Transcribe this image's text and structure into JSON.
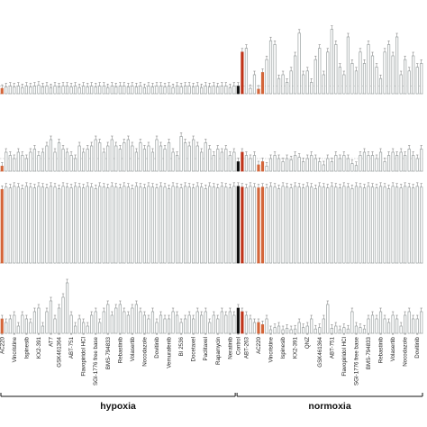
{
  "chart_data": {
    "type": "bar",
    "title": "",
    "xlabel": "",
    "panels": 4,
    "groups": [
      {
        "name": "hypoxia",
        "start": 0,
        "end": 58
      },
      {
        "name": "normoxia",
        "start": 58,
        "end": 104
      }
    ],
    "colors": {
      "compound": "#9aa1a1",
      "control_dark": "#111111",
      "control_red": "#c0351a",
      "highlight_orange": "#d4663a"
    },
    "highlight_indices": [
      0,
      58,
      59,
      63,
      64
    ],
    "tick_labels": [
      {
        "index": 0,
        "label": "AC220"
      },
      {
        "index": 3,
        "label": "Vincristine"
      },
      {
        "index": 6,
        "label": "Ispinesib"
      },
      {
        "index": 9,
        "label": "KX2-391"
      },
      {
        "index": 12,
        "label": "AT7"
      },
      {
        "index": 14,
        "label": "GSK461364"
      },
      {
        "index": 17,
        "label": "ABT-751"
      },
      {
        "index": 20,
        "label": "Flavopiridol HCl"
      },
      {
        "index": 23,
        "label": "SGI-1776 free base"
      },
      {
        "index": 26,
        "label": "BMS-794833"
      },
      {
        "index": 29,
        "label": "Rebastinib"
      },
      {
        "index": 32,
        "label": "Volasertib"
      },
      {
        "index": 35,
        "label": "Nocodazole"
      },
      {
        "index": 38,
        "label": "Dovitinib"
      },
      {
        "index": 41,
        "label": "Vemurafenib"
      },
      {
        "index": 44,
        "label": "BI 2536"
      },
      {
        "index": 47,
        "label": "Docetaxel"
      },
      {
        "index": 50,
        "label": "Paclitaxel"
      },
      {
        "index": 53,
        "label": "Rapamycin"
      },
      {
        "index": 56,
        "label": "Neratinib"
      },
      {
        "index": 58,
        "label": "Control"
      },
      {
        "index": 60,
        "label": "ABT-263"
      },
      {
        "index": 63,
        "label": "AC220"
      },
      {
        "index": 66,
        "label": "Vincristine"
      },
      {
        "index": 69,
        "label": "Ispinesib"
      },
      {
        "index": 72,
        "label": "KX2-391"
      },
      {
        "index": 75,
        "label": "QNZ"
      },
      {
        "index": 78,
        "label": "GSK461364"
      },
      {
        "index": 81,
        "label": "ABT-751"
      },
      {
        "index": 84,
        "label": "Flavopiridol HCl"
      },
      {
        "index": 87,
        "label": "SGI-1776 free base"
      },
      {
        "index": 90,
        "label": "BMS-794833"
      },
      {
        "index": 93,
        "label": "Rebastinib"
      },
      {
        "index": 96,
        "label": "Volasertib"
      },
      {
        "index": 99,
        "label": "Nocodazole"
      },
      {
        "index": 102,
        "label": "Dovitinib"
      }
    ],
    "series": [
      {
        "panel": 1,
        "ylim": [
          0,
          10
        ],
        "reference": 1,
        "values": [
          0.7,
          0.9,
          1,
          0.9,
          1,
          0.8,
          1,
          0.9,
          1,
          1.1,
          0.9,
          1,
          0.8,
          1,
          0.9,
          1,
          1,
          0.9,
          1,
          0.8,
          1,
          0.9,
          1,
          0.9,
          1,
          1,
          0.8,
          1,
          0.9,
          1,
          1,
          0.9,
          1,
          0.9,
          1,
          0.8,
          1,
          0.9,
          1,
          1,
          0.9,
          1,
          0.8,
          1,
          0.9,
          1,
          1,
          0.9,
          1,
          0.8,
          1,
          0.9,
          1,
          0.9,
          1,
          1,
          0.8,
          1,
          1,
          5.5,
          6,
          0.7,
          2.5,
          0.6,
          2.8,
          4.5,
          7,
          6.5,
          2,
          2.5,
          1.5,
          3,
          5,
          8,
          2.5,
          3,
          1.5,
          4.5,
          6,
          2.5,
          5.5,
          8.5,
          6.5,
          3.5,
          2.5,
          7.5,
          4,
          3,
          5.5,
          4,
          6.5,
          5,
          3.5,
          2,
          5.5,
          6.5,
          5,
          7.5,
          2.5,
          4.5,
          3,
          5,
          3.5,
          4
        ]
      },
      {
        "panel": 2,
        "ylim": [
          0,
          10
        ],
        "reference": 2,
        "values": [
          0.8,
          3,
          2.5,
          2,
          3,
          2.5,
          2,
          3,
          3.5,
          2.5,
          3,
          4,
          5,
          3,
          4.5,
          3.5,
          3,
          2.5,
          2,
          4,
          3,
          3.5,
          4,
          5,
          4.5,
          3,
          4,
          5,
          4,
          3.5,
          4.5,
          5,
          4,
          3,
          4.5,
          3.5,
          4,
          3,
          5,
          4,
          3.5,
          4.5,
          3,
          2.5,
          5.5,
          4.5,
          4,
          5,
          4,
          3,
          4.5,
          3.5,
          2.5,
          3.5,
          3,
          3.5,
          2.5,
          3,
          1.5,
          3,
          2.5,
          2,
          2.5,
          1,
          1.5,
          0.8,
          2,
          2.5,
          2,
          1.5,
          2,
          1.8,
          2.5,
          2.2,
          1.5,
          2,
          2.5,
          2,
          1.5,
          1,
          2,
          1.5,
          2.5,
          2,
          2.5,
          2,
          1.2,
          0.9,
          2.5,
          3,
          2.5,
          2.5,
          2,
          3,
          1.5,
          2.5,
          3,
          2.5,
          3,
          2.5,
          3.5,
          2.5,
          2,
          3.5
        ]
      },
      {
        "panel": 3,
        "ylim": [
          0,
          10
        ],
        "reference": 10,
        "values": [
          9.5,
          9.8,
          9.7,
          9.9,
          9.8,
          9.6,
          9.9,
          9.8,
          9.7,
          9.9,
          9.8,
          9.7,
          9.9,
          9.8,
          9.6,
          9.9,
          9.8,
          9.7,
          9.9,
          9.8,
          9.7,
          9.9,
          9.8,
          9.6,
          9.9,
          9.8,
          9.7,
          9.9,
          9.8,
          9.7,
          9.9,
          9.8,
          9.6,
          9.9,
          9.8,
          9.7,
          9.9,
          9.8,
          9.7,
          9.9,
          9.8,
          9.6,
          9.9,
          9.8,
          9.7,
          9.9,
          9.8,
          9.7,
          9.9,
          9.8,
          9.6,
          9.9,
          9.8,
          9.7,
          9.9,
          9.8,
          9.7,
          9.9,
          9.9,
          9.8,
          9.7,
          9.9,
          9.8,
          9.7,
          9.8,
          9.7,
          9.9,
          9.8,
          9.6,
          9.9,
          9.8,
          9.7,
          9.9,
          9.8,
          9.7,
          9.9,
          9.8,
          9.6,
          9.9,
          9.8,
          9.7,
          9.9,
          9.8,
          9.7,
          9.9,
          9.8,
          9.6,
          9.9,
          9.8,
          9.7,
          9.9,
          9.8,
          9.7,
          9.9,
          9.8,
          9.6,
          9.9,
          9.8,
          9.7,
          9.9,
          9.8,
          9.7,
          9.9,
          9.8
        ]
      },
      {
        "panel": 4,
        "ylim": [
          0,
          10
        ],
        "values": [
          2,
          1.5,
          2,
          2.5,
          1,
          2.5,
          2,
          1.5,
          3,
          3.5,
          1,
          3,
          4.5,
          2,
          3.5,
          5,
          7,
          2.5,
          1,
          2,
          1.5,
          1,
          2.5,
          3,
          1.5,
          3,
          4,
          2.5,
          3.5,
          4,
          3,
          2.5,
          3.5,
          4,
          3,
          2.5,
          2,
          3,
          1.5,
          2.5,
          2,
          2,
          3,
          2.5,
          1.5,
          2,
          2.5,
          2,
          3,
          2.5,
          3,
          1.5,
          2.5,
          2,
          3,
          2.5,
          3,
          2.5,
          3.5,
          3,
          2.5,
          2,
          1.5,
          1.5,
          1.2,
          2,
          0.5,
          0.8,
          1,
          0.5,
          0.7,
          0.5,
          0.6,
          1.5,
          0.8,
          1,
          2,
          0.6,
          0.8,
          2,
          4,
          0.7,
          1,
          0.5,
          0.8,
          0.6,
          3,
          1,
          0.8,
          0.6,
          2,
          2.5,
          2,
          3,
          2,
          1.5,
          2.5,
          2,
          1,
          2.5,
          3,
          2,
          2,
          3
        ]
      }
    ]
  }
}
